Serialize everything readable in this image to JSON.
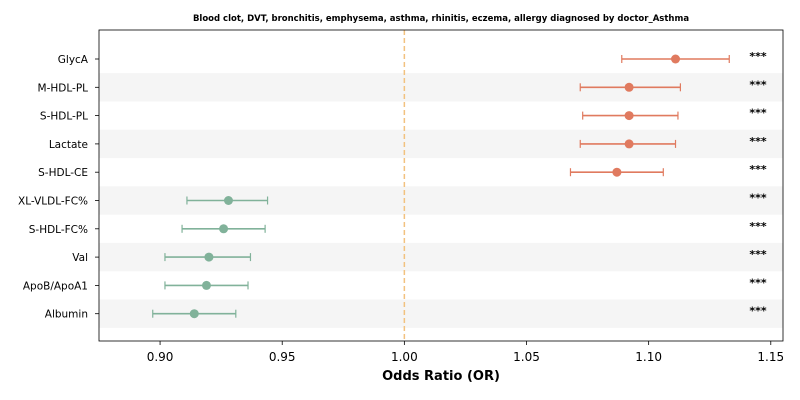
{
  "chart_data": {
    "type": "scatter",
    "subtype": "forest-plot",
    "title": "Blood clot, DVT, bronchitis, emphysema, asthma, rhinitis, eczema, allergy diagnosed by doctor_Asthma",
    "xlabel": "Odds Ratio (OR)",
    "ylabel": "",
    "xlim": [
      0.875,
      1.155
    ],
    "x_ticks": [
      0.9,
      0.95,
      1.0,
      1.05,
      1.1,
      1.15
    ],
    "x_tick_labels": [
      "0.90",
      "0.95",
      "1.00",
      "1.05",
      "1.10",
      "1.15"
    ],
    "reference_line": {
      "x": 1.0,
      "style": "dashed",
      "color": "#f2c27f"
    },
    "grid": false,
    "row_shading": "alternating",
    "colors": {
      "positive": "#e07a5f",
      "negative": "#81b29a",
      "band": "#f5f5f5",
      "reference": "#f2c27f"
    },
    "series": [
      {
        "label": "GlycA",
        "or": 1.111,
        "ci_low": 1.089,
        "ci_high": 1.133,
        "sig": "***"
      },
      {
        "label": "M-HDL-PL",
        "or": 1.092,
        "ci_low": 1.072,
        "ci_high": 1.113,
        "sig": "***"
      },
      {
        "label": "S-HDL-PL",
        "or": 1.092,
        "ci_low": 1.073,
        "ci_high": 1.112,
        "sig": "***"
      },
      {
        "label": "Lactate",
        "or": 1.092,
        "ci_low": 1.072,
        "ci_high": 1.111,
        "sig": "***"
      },
      {
        "label": "S-HDL-CE",
        "or": 1.087,
        "ci_low": 1.068,
        "ci_high": 1.106,
        "sig": "***"
      },
      {
        "label": "XL-VLDL-FC%",
        "or": 0.928,
        "ci_low": 0.911,
        "ci_high": 0.944,
        "sig": "***"
      },
      {
        "label": "S-HDL-FC%",
        "or": 0.926,
        "ci_low": 0.909,
        "ci_high": 0.943,
        "sig": "***"
      },
      {
        "label": "Val",
        "or": 0.92,
        "ci_low": 0.902,
        "ci_high": 0.937,
        "sig": "***"
      },
      {
        "label": "ApoB/ApoA1",
        "or": 0.919,
        "ci_low": 0.902,
        "ci_high": 0.936,
        "sig": "***"
      },
      {
        "label": "Albumin",
        "or": 0.914,
        "ci_low": 0.897,
        "ci_high": 0.931,
        "sig": "***"
      }
    ]
  }
}
